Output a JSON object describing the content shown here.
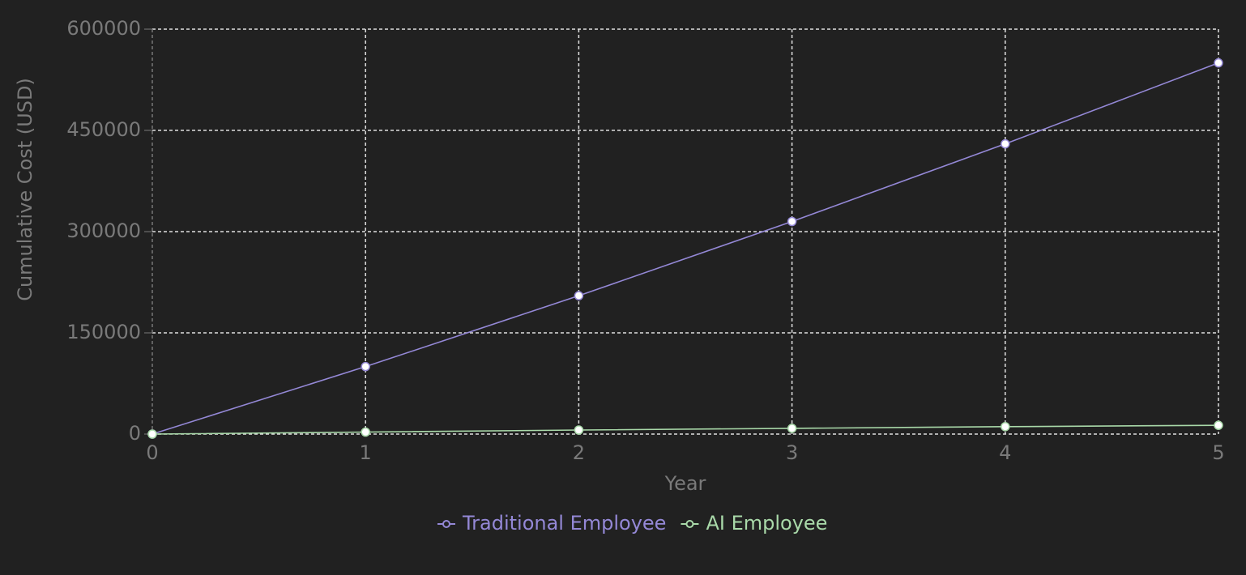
{
  "chart_data": {
    "type": "line",
    "x_label": "Year",
    "y_label": "Cumulative Cost (USD)",
    "x": [
      0,
      1,
      2,
      3,
      4,
      5
    ],
    "series": [
      {
        "name": "Traditional Employee",
        "color": "#9488d6",
        "values": [
          0,
          100000,
          205000,
          315000,
          430000,
          550000
        ]
      },
      {
        "name": "AI Employee",
        "color": "#a9d9a9",
        "values": [
          0,
          3000,
          6000,
          8500,
          11000,
          13000
        ]
      }
    ],
    "xlim": [
      0,
      5
    ],
    "xticks": [
      0,
      1,
      2,
      3,
      4,
      5
    ],
    "ylim": [
      0,
      600000
    ],
    "yticks": [
      0,
      150000,
      300000,
      450000,
      600000
    ],
    "grid": true,
    "legend": "bottom"
  }
}
